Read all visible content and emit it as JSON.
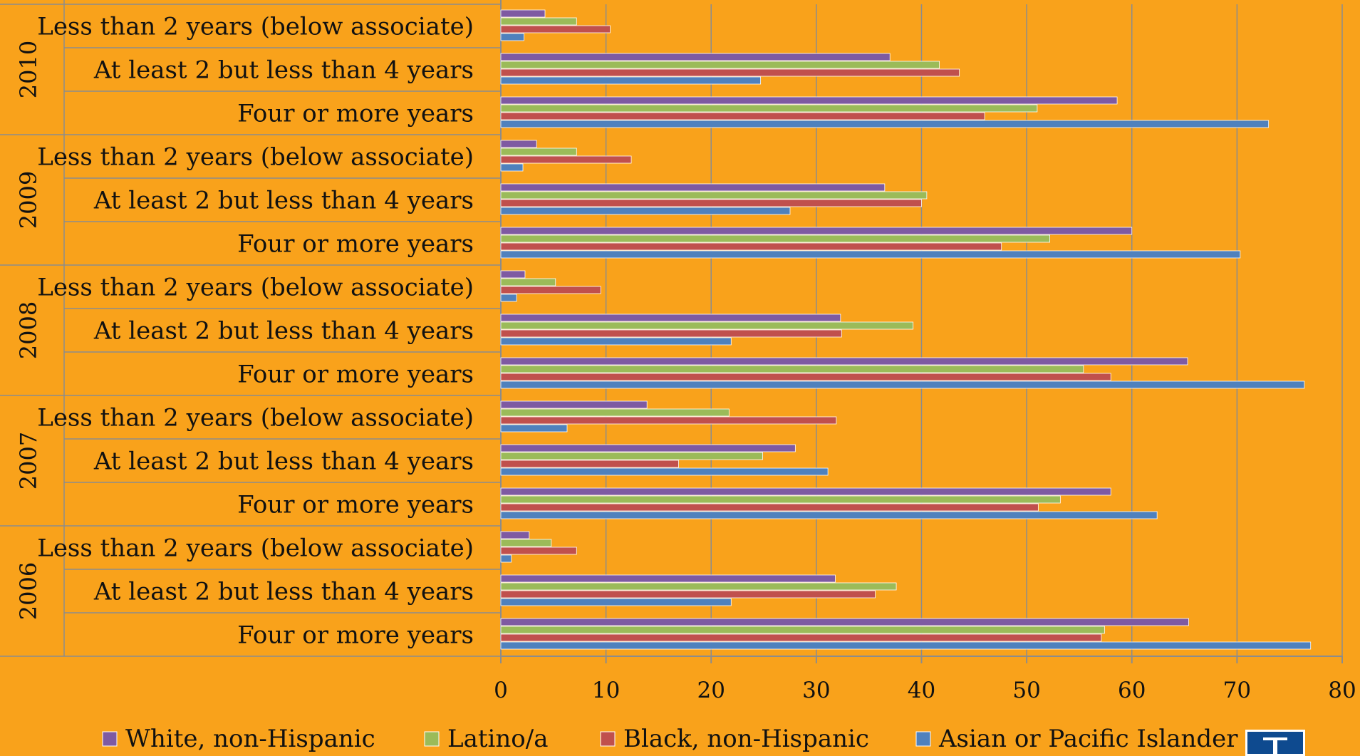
{
  "chart_data": {
    "type": "bar",
    "orientation": "horizontal",
    "title": "",
    "xlabel": "",
    "ylabel": "",
    "xlim": [
      0,
      80
    ],
    "x_ticks": [
      "0",
      "10",
      "20",
      "30",
      "40",
      "50",
      "60",
      "70",
      "80"
    ],
    "grid": "vertical",
    "legend_position": "bottom",
    "groups": [
      {
        "year": "2010",
        "categories": [
          "Less than 2 years (below associate)",
          "At least 2 but less than 4 years",
          "Four or more years"
        ]
      },
      {
        "year": "2009",
        "categories": [
          "Less than 2 years (below associate)",
          "At least 2 but less than 4 years",
          "Four or more years"
        ]
      },
      {
        "year": "2008",
        "categories": [
          "Less than 2 years (below associate)",
          "At least 2 but less than 4 years",
          "Four or more years"
        ]
      },
      {
        "year": "2007",
        "categories": [
          "Less than 2 years (below associate)",
          "At least 2 but less than 4 years",
          "Four or more years"
        ]
      },
      {
        "year": "2006",
        "categories": [
          "Less than 2 years (below associate)",
          "At least 2 but less than 4 years",
          "Four or more years"
        ]
      }
    ],
    "series": [
      {
        "name": "White, non-Hispanic",
        "color": "#7E5AA2",
        "values": [
          4.2,
          37,
          58.6,
          3.4,
          36.5,
          60,
          2.3,
          32.3,
          65.3,
          13.9,
          28,
          58,
          2.7,
          31.8,
          65.4
        ]
      },
      {
        "name": "Latino/a",
        "color": "#9BBB59",
        "values": [
          7.2,
          41.7,
          51,
          7.2,
          40.5,
          52.2,
          5.2,
          39.2,
          55.4,
          21.7,
          24.9,
          53.2,
          4.8,
          37.6,
          57.4
        ]
      },
      {
        "name": "Black, non-Hispanic",
        "color": "#C0504D",
        "values": [
          10.4,
          43.6,
          46,
          12.4,
          40,
          47.6,
          9.5,
          32.4,
          58,
          31.9,
          16.9,
          51.1,
          7.2,
          35.6,
          57.1
        ]
      },
      {
        "name": "Asian or Pacific Islander",
        "color": "#4F81BD",
        "values": [
          2.2,
          24.7,
          73,
          2.1,
          27.5,
          70.3,
          1.5,
          21.9,
          76.4,
          6.3,
          31.1,
          62.4,
          1,
          21.9,
          77
        ]
      }
    ]
  }
}
